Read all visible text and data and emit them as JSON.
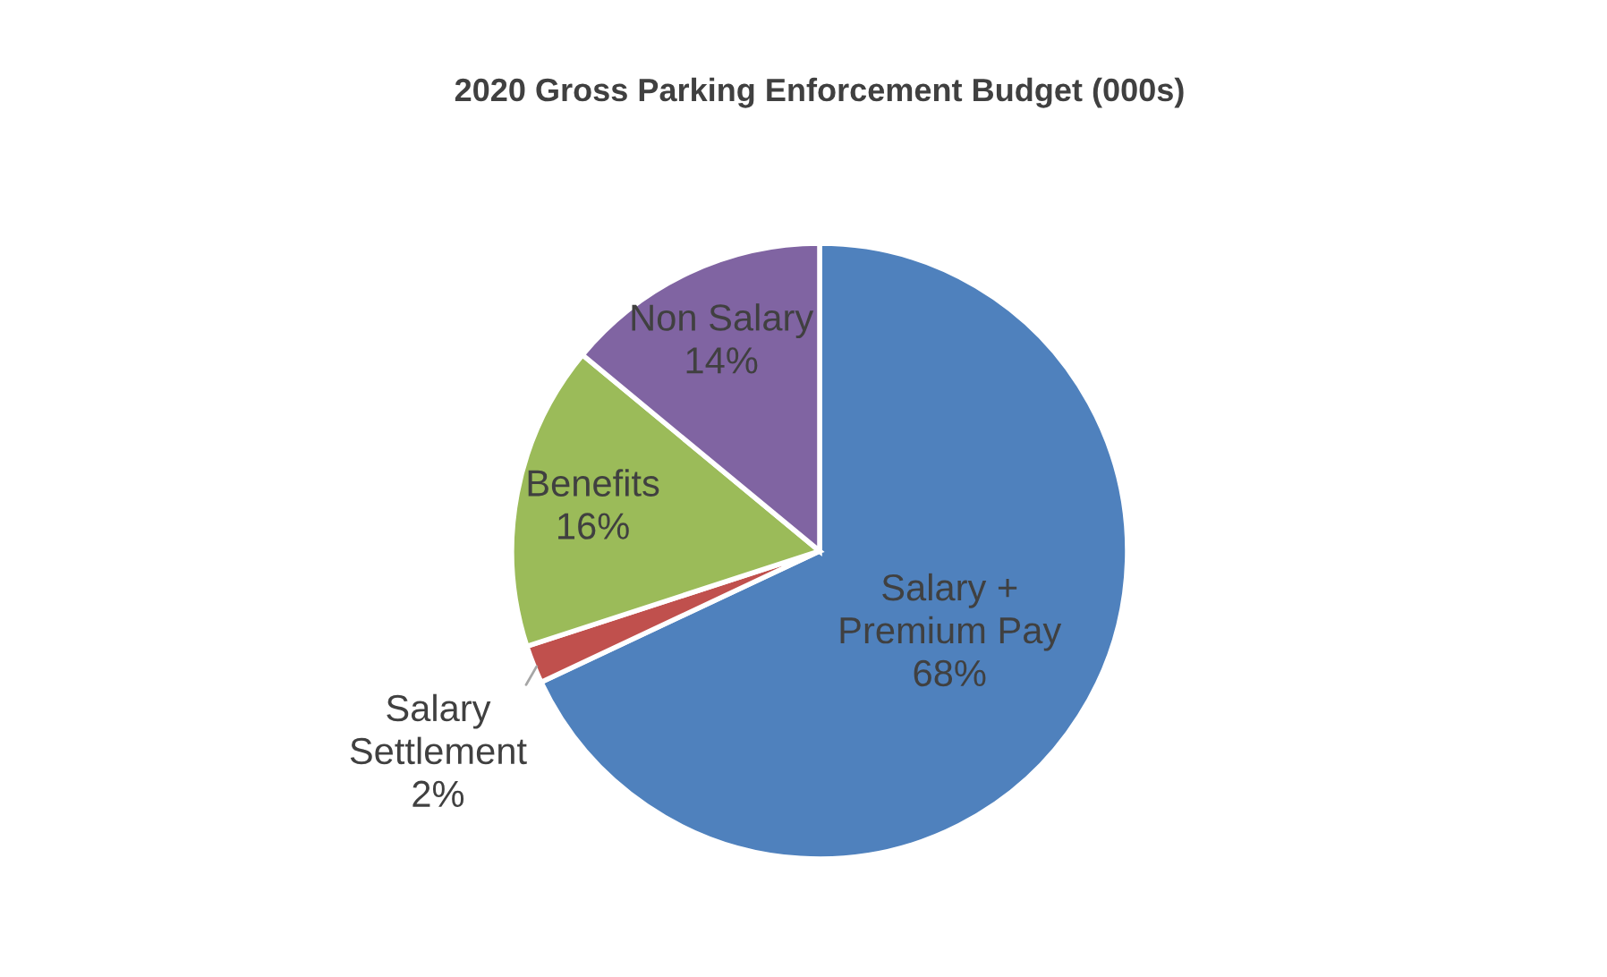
{
  "chart_data": {
    "type": "pie",
    "title": "2020 Gross Parking Enforcement Budget (000s)",
    "categories": [
      "Salary +\nPremium Pay",
      "Salary\nSettlement",
      "Benefits",
      "Non Salary"
    ],
    "values": [
      68,
      2,
      16,
      14
    ],
    "colors": [
      "#4f81bd",
      "#c0504d",
      "#9bbb59",
      "#8064a2"
    ],
    "value_labels": [
      "68%",
      "2%",
      "16%",
      "14%"
    ],
    "legend": false
  }
}
